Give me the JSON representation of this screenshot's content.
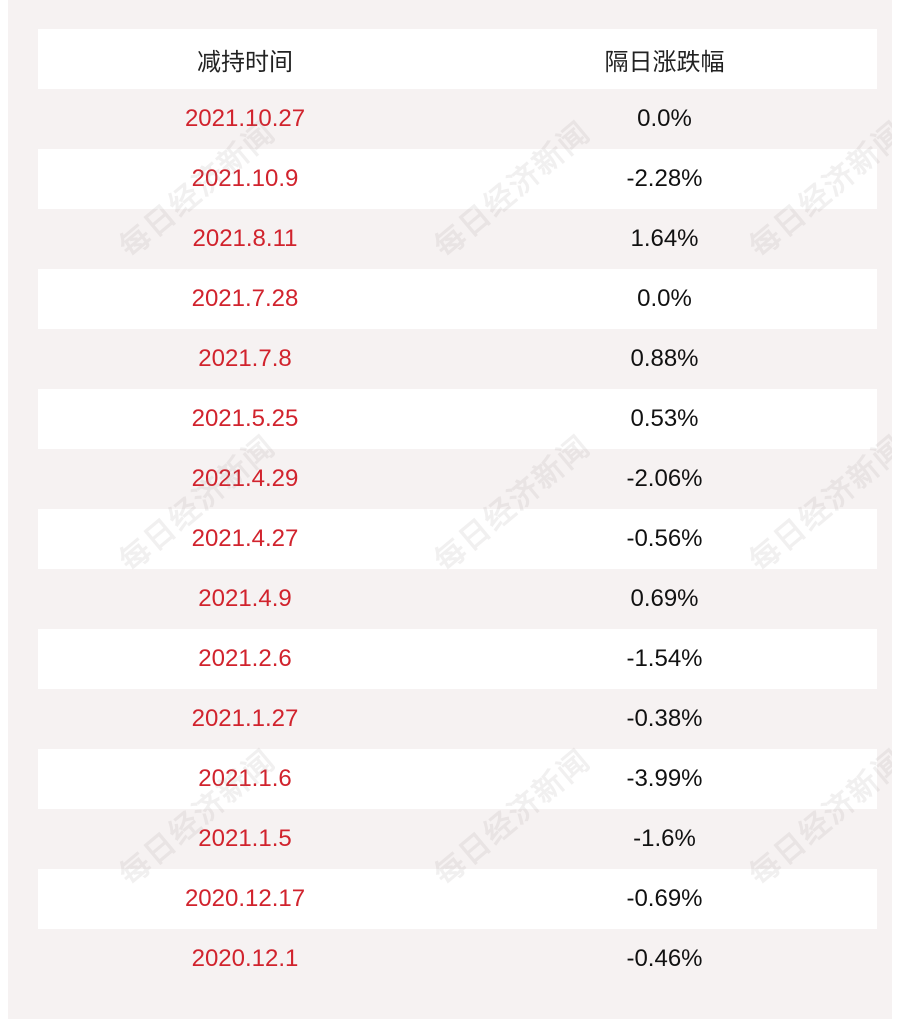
{
  "table": {
    "headers": [
      "减持时间",
      "隔日涨跌幅"
    ],
    "rows": [
      {
        "date": "2021.10.27",
        "change": "0.0%"
      },
      {
        "date": "2021.10.9",
        "change": "-2.28%"
      },
      {
        "date": "2021.8.11",
        "change": "1.64%"
      },
      {
        "date": "2021.7.28",
        "change": "0.0%"
      },
      {
        "date": "2021.7.8",
        "change": "0.88%"
      },
      {
        "date": "2021.5.25",
        "change": "0.53%"
      },
      {
        "date": "2021.4.29",
        "change": "-2.06%"
      },
      {
        "date": "2021.4.27",
        "change": "-0.56%"
      },
      {
        "date": "2021.4.9",
        "change": "0.69%"
      },
      {
        "date": "2021.2.6",
        "change": "-1.54%"
      },
      {
        "date": "2021.1.27",
        "change": "-0.38%"
      },
      {
        "date": "2021.1.6",
        "change": "-3.99%"
      },
      {
        "date": "2021.1.5",
        "change": "-1.6%"
      },
      {
        "date": "2020.12.17",
        "change": "-0.69%"
      },
      {
        "date": "2020.12.1",
        "change": "-0.46%"
      }
    ]
  },
  "watermark": {
    "text": "每日经济新闻"
  },
  "colors": {
    "date_text": "#d1232d",
    "change_text": "#111111",
    "header_text": "#222222",
    "row_white": "#ffffff",
    "row_tinted": "#f6f2f2"
  }
}
